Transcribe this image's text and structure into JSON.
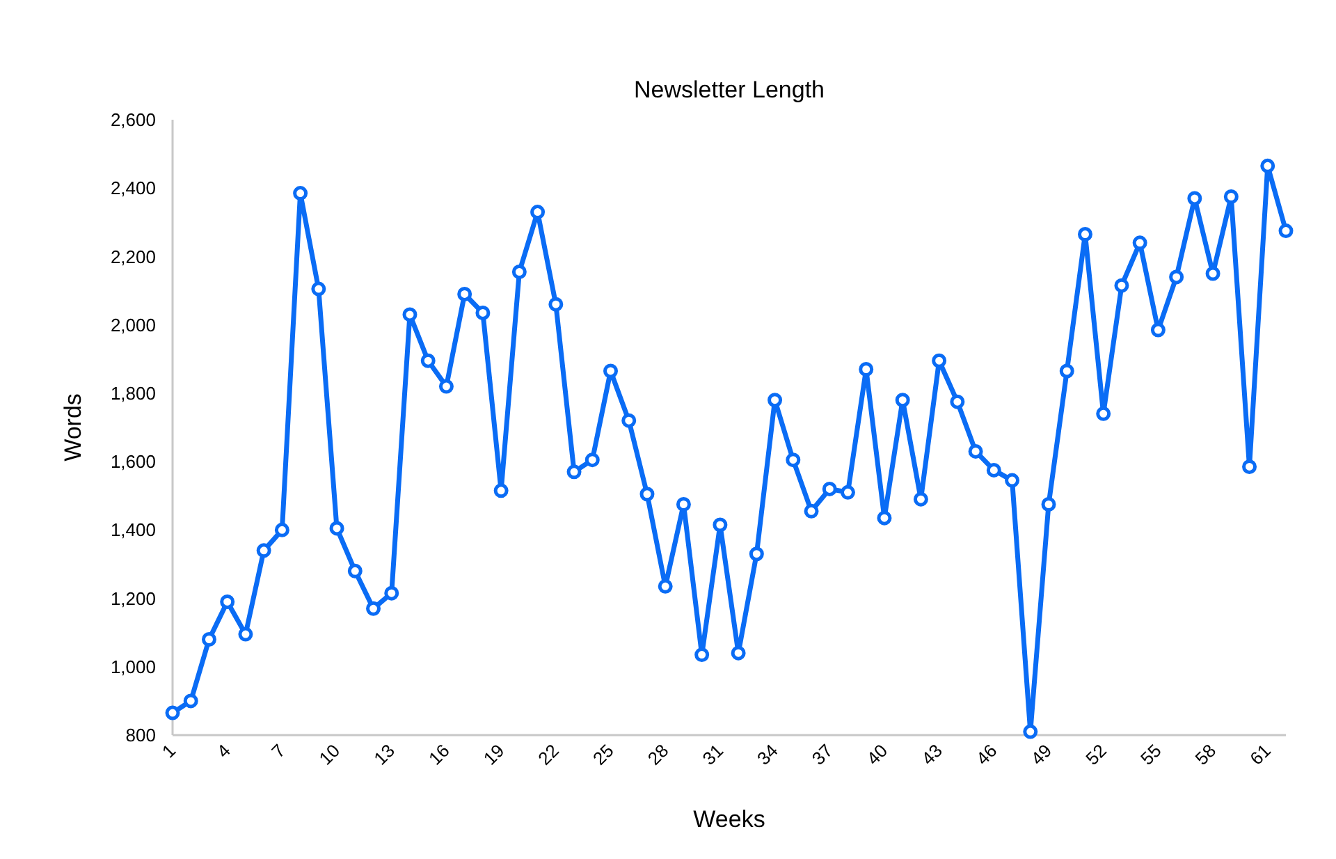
{
  "chart_data": {
    "type": "line",
    "title": "Newsletter Length",
    "xlabel": "Weeks",
    "ylabel": "Words",
    "categories": [
      "1",
      null,
      null,
      "4",
      null,
      null,
      "7",
      null,
      null,
      "10",
      null,
      null,
      "13",
      null,
      null,
      "16",
      null,
      null,
      "19",
      null,
      null,
      "22",
      null,
      null,
      "25",
      null,
      null,
      "28",
      null,
      null,
      "31",
      null,
      null,
      "34",
      null,
      null,
      "37",
      null,
      null,
      "40",
      null,
      null,
      "43",
      null,
      null,
      "46",
      null,
      null,
      "49",
      null,
      null,
      "52",
      null,
      null,
      "55",
      null,
      null,
      "58",
      null,
      null,
      "61",
      null
    ],
    "series": [
      {
        "color": "#0a6cf5",
        "values": [
          865,
          900,
          1080,
          1190,
          1095,
          1340,
          1400,
          2385,
          2105,
          1405,
          1280,
          1170,
          1215,
          2030,
          1895,
          1820,
          2090,
          2035,
          1515,
          2155,
          2330,
          2060,
          1570,
          1605,
          1865,
          1720,
          1505,
          1235,
          1475,
          1035,
          1415,
          1040,
          1330,
          1780,
          1605,
          1455,
          1520,
          1510,
          1870,
          1435,
          1780,
          1490,
          1895,
          1775,
          1630,
          1575,
          1545,
          810,
          1475,
          1865,
          2265,
          1740,
          2115,
          2240,
          1985,
          2140,
          2370,
          2150,
          2375,
          1585,
          2465,
          2275
        ]
      }
    ],
    "ylim": [
      800,
      2600
    ],
    "yticks": [
      {
        "value": 800,
        "label": "800"
      },
      {
        "value": 1000,
        "label": "1,000"
      },
      {
        "value": 1200,
        "label": "1,200"
      },
      {
        "value": 1400,
        "label": "1,400"
      },
      {
        "value": 1600,
        "label": "1,600"
      },
      {
        "value": 1800,
        "label": "1,800"
      },
      {
        "value": 2000,
        "label": "2,000"
      },
      {
        "value": 2200,
        "label": "2,200"
      },
      {
        "value": 2400,
        "label": "2,400"
      },
      {
        "value": 2600,
        "label": "2,600"
      }
    ],
    "grid": false,
    "marker": "circle",
    "line_style": "solid"
  }
}
